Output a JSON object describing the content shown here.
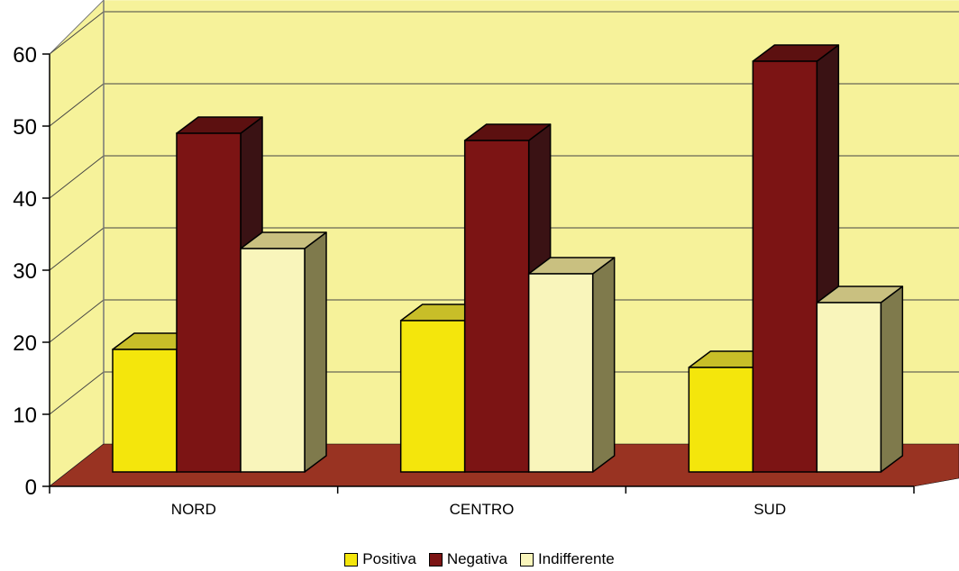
{
  "chart_data": {
    "type": "bar",
    "categories": [
      "NORD",
      "CENTRO",
      "SUD"
    ],
    "series": [
      {
        "name": "Positiva",
        "values": [
          19,
          23,
          16.5
        ],
        "color": "#f4e60c",
        "top": "#c8be28",
        "side": "#8a8a3e"
      },
      {
        "name": "Negativa",
        "values": [
          49,
          48,
          59
        ],
        "color": "#7c1414",
        "top": "#5c1010",
        "side": "#3a1214"
      },
      {
        "name": "Indifferente",
        "values": [
          33,
          29.5,
          25.5
        ],
        "color": "#f9f5bb",
        "top": "#c9c080",
        "side": "#7f7a4c"
      }
    ],
    "y_ticks": [
      "0",
      "10",
      "20",
      "30",
      "40",
      "50",
      "60"
    ],
    "ylim": [
      0,
      60
    ],
    "title": "",
    "xlabel": "",
    "ylabel": "",
    "grid": true,
    "legend": "bottom",
    "wall_color": "#f6f29a",
    "floor_color": "#993322"
  }
}
